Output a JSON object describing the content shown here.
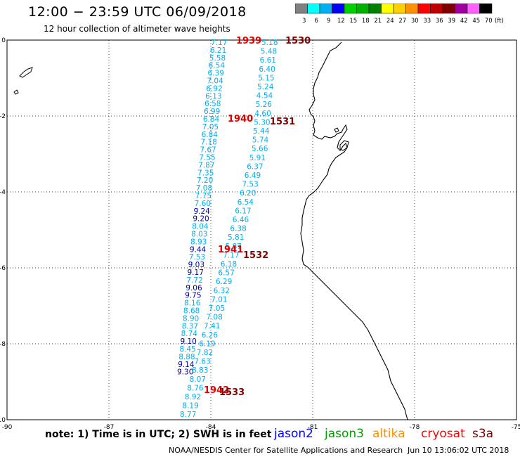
{
  "header": {
    "title": "12:00 − 23:59 UTC 06/09/2018",
    "subtitle": "12 hour collection of altimeter wave heights"
  },
  "scale_bar": {
    "unit": "(ft)",
    "bins": [
      {
        "label": "3",
        "color": "#808080"
      },
      {
        "label": "6",
        "color": "#00ffff"
      },
      {
        "label": "9",
        "color": "#00b0f0"
      },
      {
        "label": "12",
        "color": "#0000ff"
      },
      {
        "label": "15",
        "color": "#00d000"
      },
      {
        "label": "18",
        "color": "#00b000"
      },
      {
        "label": "21",
        "color": "#008000"
      },
      {
        "label": "24",
        "color": "#ffff00"
      },
      {
        "label": "27",
        "color": "#ffd000"
      },
      {
        "label": "30",
        "color": "#ff9000"
      },
      {
        "label": "33",
        "color": "#ff0000"
      },
      {
        "label": "36",
        "color": "#c00000"
      },
      {
        "label": "39",
        "color": "#800000"
      },
      {
        "label": "42",
        "color": "#a000a0"
      },
      {
        "label": "45",
        "color": "#ff60ff"
      },
      {
        "label": "70",
        "color": "#000000"
      }
    ]
  },
  "map": {
    "lon_range": [
      -90,
      -75
    ],
    "lat_range": [
      -10,
      0
    ],
    "lon_ticks": [
      "-90",
      "-87",
      "-84",
      "-81",
      "-78",
      "-75"
    ],
    "lat_ticks": [
      "0",
      "-2",
      "-4",
      "-6",
      "-8",
      "-10"
    ],
    "grid": "dotted",
    "tracks": [
      {
        "color": "#00b0f0",
        "values": [
          "7.17",
          "6.21",
          "5.58",
          "6.54",
          "6.39",
          "7.04",
          "6.92",
          "6.13",
          "6.58",
          "6.99",
          "6.84",
          "7.05",
          "6.84",
          "7.18",
          "7.67",
          "7.55",
          "7.87",
          "7.35",
          "7.20",
          "7.08",
          "7.75",
          "7.60"
        ]
      },
      {
        "color": "#0000a0",
        "values": [
          "9.24",
          "9.20"
        ]
      },
      {
        "color": "#00b0f0",
        "values": [
          "8.04",
          "8.03",
          "8.93"
        ]
      },
      {
        "color": "#0000a0",
        "values": [
          "9.44"
        ]
      },
      {
        "color": "#00b0f0",
        "values": [
          "7.53"
        ]
      },
      {
        "color": "#0000a0",
        "values": [
          "9.03",
          "9.17"
        ]
      },
      {
        "color": "#00b0f0",
        "values": [
          "7.72"
        ]
      },
      {
        "color": "#0000a0",
        "values": [
          "9.06",
          "9.75"
        ]
      },
      {
        "color": "#00b0f0",
        "values": [
          "8.16",
          "8.68",
          "8.90",
          "8.37",
          "8.74"
        ]
      },
      {
        "color": "#0000a0",
        "values": [
          "9.10"
        ]
      },
      {
        "color": "#00b0f0",
        "values": [
          "8.45",
          "8.88"
        ]
      },
      {
        "color": "#0000a0",
        "values": [
          "9.14",
          "9.30"
        ]
      },
      {
        "color": "#00b0f0",
        "values": [
          "5.18",
          "5.48",
          "6.61",
          "6.40",
          "5.15",
          "5.24",
          "4.54",
          "5.26",
          "4.60",
          "5.30",
          "5.44",
          "5.74",
          "5.66",
          "5.91",
          "6.37",
          "6.49",
          "7.53",
          "6.20",
          "6.54",
          "6.17",
          "6.46",
          "6.38",
          "5.81",
          "5.87",
          "7.17",
          "6.18",
          "6.57",
          "6.29",
          "6.32",
          "7.01",
          "7.05",
          "7.08",
          "7.41",
          "6.26",
          "6.19",
          "7.82",
          "7.63",
          "8.83",
          "8.07",
          "8.76",
          "8.92",
          "8.19",
          "8.77"
        ]
      }
    ],
    "pass_labels": [
      {
        "text": "1939",
        "color": "#e00000"
      },
      {
        "text": "1530",
        "color": "#800000"
      },
      {
        "text": "1940",
        "color": "#e00000"
      },
      {
        "text": "1531",
        "color": "#800000"
      },
      {
        "text": "1941",
        "color": "#e00000"
      },
      {
        "text": "1532",
        "color": "#800000"
      },
      {
        "text": "1942",
        "color": "#e00000"
      },
      {
        "text": "1533",
        "color": "#800000"
      }
    ]
  },
  "footer": {
    "note": "note: 1) Time is in UTC; 2) SWH is in feet",
    "satellites": [
      {
        "name": "jason2",
        "color": "#0000ff"
      },
      {
        "name": "jason3",
        "color": "#00a000"
      },
      {
        "name": "altika",
        "color": "#ff9000"
      },
      {
        "name": "cryosat",
        "color": "#ff0000"
      },
      {
        "name": "s3a",
        "color": "#800000"
      }
    ],
    "credit": "NOAA/NESDIS Center for Satellite Applications and Research",
    "timestamp": "Jun 10 13:06:02 UTC 2018"
  }
}
